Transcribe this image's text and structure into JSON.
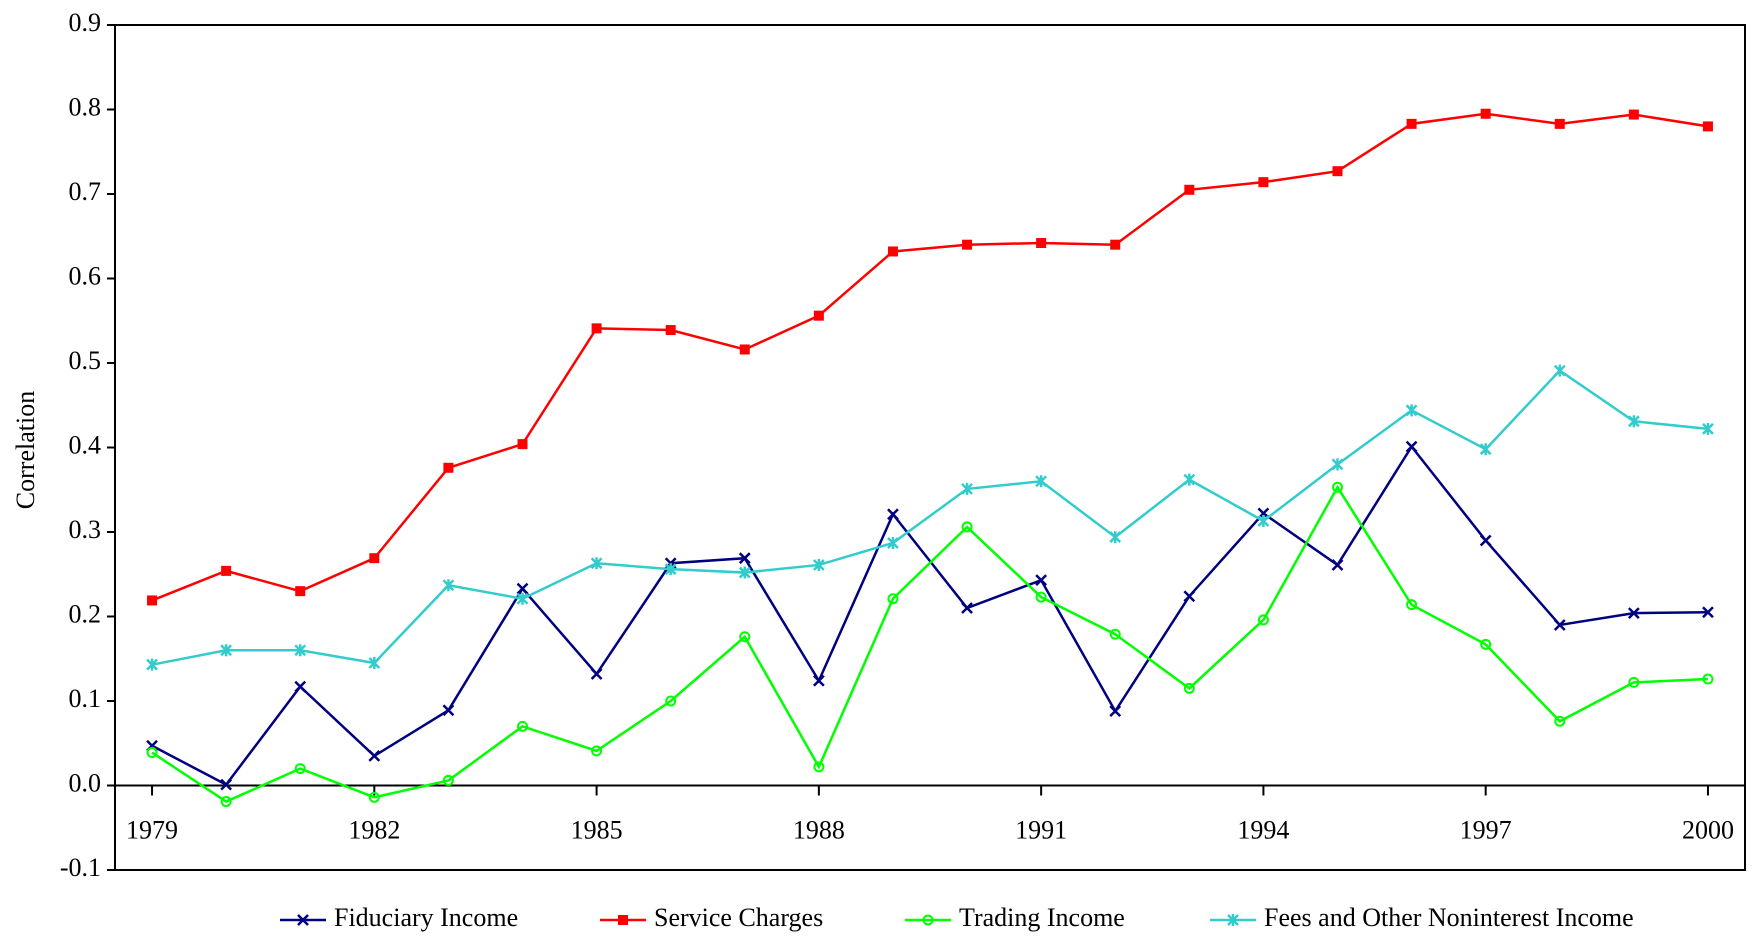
{
  "chart_data": {
    "type": "line",
    "y_label": "Correlation",
    "x": [
      1979,
      1980,
      1981,
      1982,
      1983,
      1984,
      1985,
      1986,
      1987,
      1988,
      1989,
      1990,
      1991,
      1992,
      1993,
      1994,
      1995,
      1996,
      1997,
      1998,
      1999,
      2000
    ],
    "xlim": [
      1978.5,
      2000.5
    ],
    "xticks": [
      1979,
      1982,
      1985,
      1988,
      1991,
      1994,
      1997,
      2000
    ],
    "ylim": [
      -0.1,
      0.9
    ],
    "yticks": [
      {
        "value": -0.1,
        "label": "-0.1"
      },
      {
        "value": 0,
        "label": "0.0"
      },
      0.1,
      0.2,
      0.3,
      0.4,
      0.5,
      0.6,
      0.7,
      0.8,
      0.9
    ],
    "legend": "bottom",
    "series": [
      {
        "name": "Fiduciary Income",
        "color": "#000080",
        "marker": "x",
        "values": [
          0.047,
          0.001,
          0.117,
          0.035,
          0.089,
          0.233,
          0.132,
          0.263,
          0.269,
          0.124,
          0.321,
          0.21,
          0.243,
          0.088,
          0.224,
          0.322,
          0.261,
          0.401,
          0.29,
          0.19,
          0.204,
          0.205
        ]
      },
      {
        "name": "Service Charges",
        "color": "#ff0000",
        "marker": "square",
        "values": [
          0.219,
          0.254,
          0.23,
          0.269,
          0.376,
          0.404,
          0.541,
          0.539,
          0.516,
          0.556,
          0.632,
          0.64,
          0.642,
          0.64,
          0.705,
          0.714,
          0.727,
          0.783,
          0.795,
          0.783,
          0.794,
          0.78
        ]
      },
      {
        "name": "Trading Income",
        "color": "#00ff00",
        "marker": "circle",
        "values": [
          0.039,
          -0.019,
          0.02,
          -0.014,
          0.006,
          0.07,
          0.041,
          0.1,
          0.176,
          0.022,
          0.221,
          0.306,
          0.223,
          0.179,
          0.115,
          0.196,
          0.353,
          0.214,
          0.167,
          0.076,
          0.122,
          0.126
        ]
      },
      {
        "name": "Fees and Other Noninterest Income",
        "color": "#33cccc",
        "marker": "asterisk",
        "values": [
          0.143,
          0.16,
          0.16,
          0.145,
          0.237,
          0.221,
          0.263,
          0.256,
          0.252,
          0.261,
          0.287,
          0.351,
          0.36,
          0.294,
          0.362,
          0.313,
          0.38,
          0.444,
          0.398,
          0.491,
          0.431,
          0.422
        ]
      }
    ]
  }
}
